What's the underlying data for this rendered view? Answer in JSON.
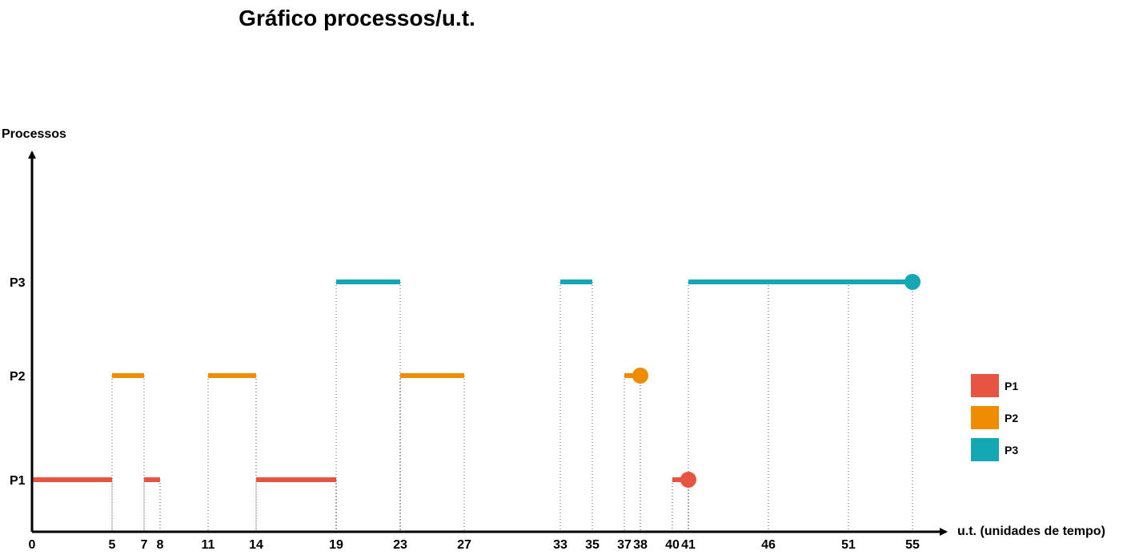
{
  "chart_data": {
    "type": "timeline",
    "title": "Gráfico processos/u.t.",
    "xlabel": "u.t. (unidades de tempo)",
    "ylabel": "Processos",
    "x_ticks": [
      0,
      5,
      7,
      8,
      11,
      14,
      19,
      23,
      27,
      33,
      35,
      37,
      38,
      40,
      41,
      46,
      51,
      55
    ],
    "categories": [
      "P1",
      "P2",
      "P3"
    ],
    "series": [
      {
        "name": "P1",
        "color": "#e85442",
        "segments": [
          [
            0,
            5
          ],
          [
            7,
            8
          ],
          [
            14,
            19
          ],
          [
            40,
            41
          ]
        ],
        "end_marker": 41
      },
      {
        "name": "P2",
        "color": "#f08c00",
        "segments": [
          [
            5,
            7
          ],
          [
            11,
            14
          ],
          [
            23,
            27
          ],
          [
            37,
            38
          ]
        ],
        "end_marker": 38
      },
      {
        "name": "P3",
        "color": "#14a8b4",
        "segments": [
          [
            19,
            23
          ],
          [
            33,
            35
          ],
          [
            41,
            55
          ]
        ],
        "end_marker": 55
      }
    ],
    "legend": {
      "position": "right",
      "items": [
        "P1",
        "P2",
        "P3"
      ]
    },
    "grid": "dotted guide lines at tick times"
  }
}
